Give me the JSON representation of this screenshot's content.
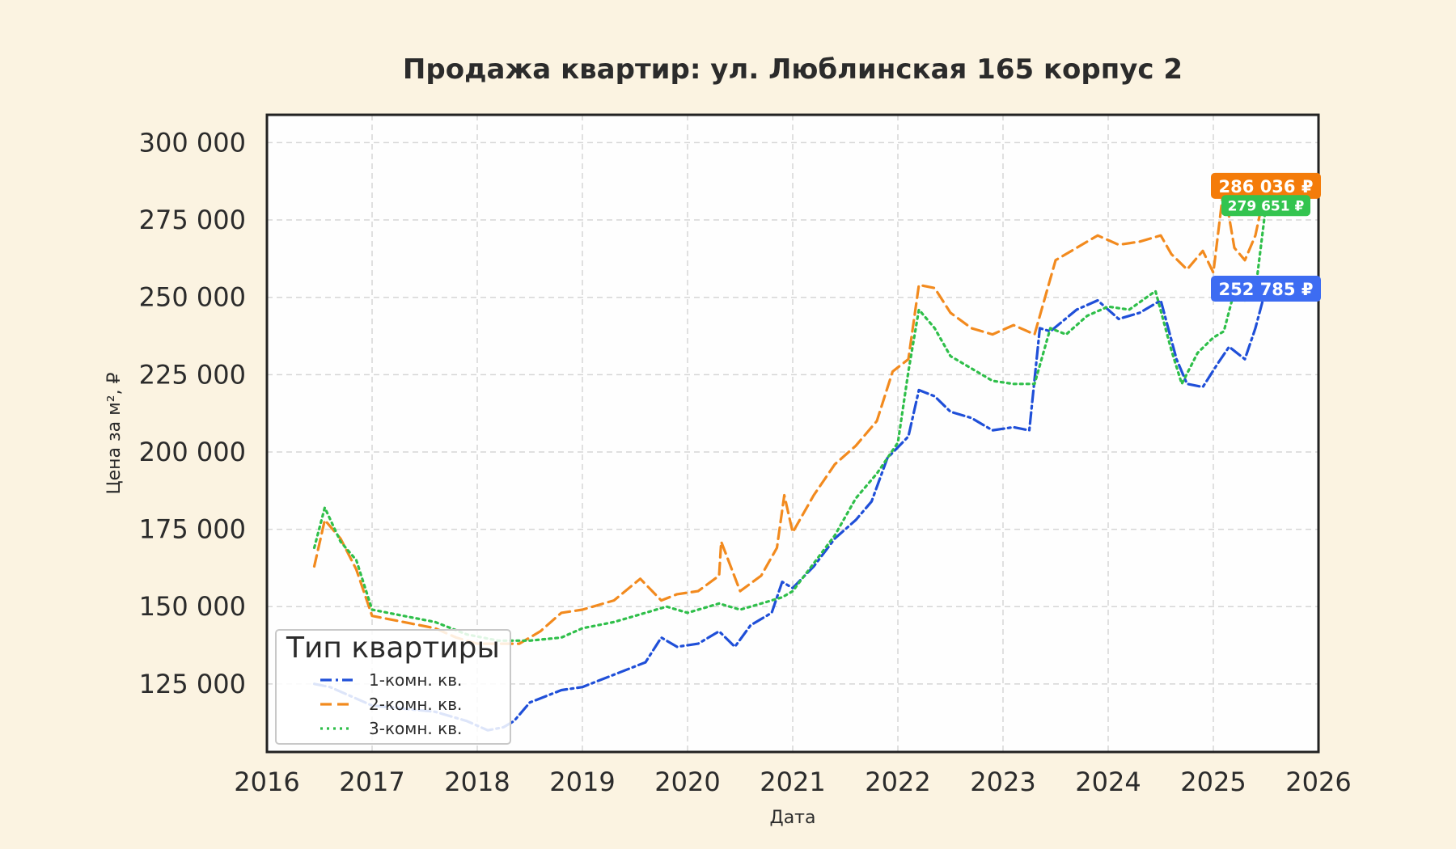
{
  "chart_data": {
    "type": "line",
    "title": "Продажа квартир: ул. Люблинская 165 корпус 2",
    "xlabel": "Дата",
    "ylabel": "Цена за м², ₽",
    "xlim": [
      2016.0,
      2026.0
    ],
    "ylim": [
      103000,
      309000
    ],
    "x_ticks": [
      2016,
      2017,
      2018,
      2019,
      2020,
      2021,
      2022,
      2023,
      2024,
      2025,
      2026
    ],
    "x_tick_labels": [
      "2016",
      "2017",
      "2018",
      "2019",
      "2020",
      "2021",
      "2022",
      "2023",
      "2024",
      "2025",
      "2026"
    ],
    "y_ticks": [
      125000,
      150000,
      175000,
      200000,
      225000,
      250000,
      275000,
      300000
    ],
    "y_tick_labels": [
      "125 000",
      "150 000",
      "175 000",
      "200 000",
      "225 000",
      "250 000",
      "275 000",
      "300 000"
    ],
    "grid": true,
    "legend": {
      "title": "Тип квартиры",
      "placement": "lower-left"
    },
    "series": [
      {
        "name": "1-комн. кв.",
        "color": "#1f4fd8",
        "line_style": "dashdot",
        "x": [
          2016.45,
          2016.6,
          2016.8,
          2017.0,
          2017.3,
          2017.6,
          2017.9,
          2018.1,
          2018.25,
          2018.35,
          2018.5,
          2018.8,
          2019.0,
          2019.3,
          2019.6,
          2019.75,
          2019.9,
          2020.1,
          2020.3,
          2020.45,
          2020.6,
          2020.8,
          2020.9,
          2021.0,
          2021.2,
          2021.4,
          2021.6,
          2021.75,
          2021.9,
          2022.1,
          2022.2,
          2022.35,
          2022.5,
          2022.7,
          2022.9,
          2023.1,
          2023.25,
          2023.35,
          2023.45,
          2023.7,
          2023.9,
          2024.1,
          2024.3,
          2024.5,
          2024.65,
          2024.75,
          2024.9,
          2025.05,
          2025.15,
          2025.3,
          2025.4,
          2025.5
        ],
        "y": [
          125000,
          124000,
          121000,
          118000,
          117000,
          116000,
          113000,
          110000,
          111000,
          113000,
          119000,
          123000,
          124000,
          128000,
          132000,
          140000,
          137000,
          138000,
          142000,
          137000,
          144000,
          148000,
          158000,
          156000,
          163000,
          172000,
          178000,
          184000,
          198000,
          205000,
          220000,
          218000,
          213000,
          211000,
          207000,
          208000,
          207000,
          240000,
          239000,
          246000,
          249000,
          243000,
          245000,
          249000,
          230000,
          222000,
          221000,
          229000,
          234000,
          230000,
          240000,
          252785
        ]
      },
      {
        "name": "2-комн. кв.",
        "color": "#f28a1e",
        "line_style": "dashed",
        "x": [
          2016.45,
          2016.55,
          2016.7,
          2016.85,
          2017.0,
          2017.3,
          2017.6,
          2017.8,
          2018.0,
          2018.2,
          2018.4,
          2018.6,
          2018.8,
          2019.0,
          2019.3,
          2019.55,
          2019.75,
          2019.9,
          2020.1,
          2020.3,
          2020.32,
          2020.5,
          2020.7,
          2020.85,
          2020.92,
          2021.0,
          2021.2,
          2021.4,
          2021.6,
          2021.7,
          2021.8,
          2021.95,
          2022.1,
          2022.2,
          2022.35,
          2022.5,
          2022.7,
          2022.9,
          2023.1,
          2023.3,
          2023.5,
          2023.7,
          2023.9,
          2024.1,
          2024.3,
          2024.5,
          2024.6,
          2024.75,
          2024.9,
          2025.0,
          2025.1,
          2025.2,
          2025.3,
          2025.4,
          2025.5
        ],
        "y": [
          163000,
          178000,
          172000,
          162000,
          147000,
          145000,
          143000,
          140000,
          138000,
          138000,
          138000,
          142000,
          148000,
          149000,
          152000,
          159000,
          152000,
          154000,
          155000,
          160000,
          171000,
          155000,
          160000,
          169000,
          186000,
          174000,
          186000,
          196000,
          202000,
          206000,
          210000,
          226000,
          230000,
          254000,
          253000,
          245000,
          240000,
          238000,
          241000,
          238000,
          262000,
          266000,
          270000,
          267000,
          268000,
          270000,
          264000,
          259000,
          265000,
          258000,
          286000,
          266000,
          262000,
          270000,
          286036
        ]
      },
      {
        "name": "3-комн. кв.",
        "color": "#2fbf4a",
        "line_style": "dotted",
        "x": [
          2016.45,
          2016.55,
          2016.7,
          2016.85,
          2017.0,
          2017.3,
          2017.6,
          2017.9,
          2018.2,
          2018.5,
          2018.8,
          2019.0,
          2019.3,
          2019.6,
          2019.8,
          2020.0,
          2020.3,
          2020.5,
          2020.7,
          2020.9,
          2021.0,
          2021.2,
          2021.4,
          2021.6,
          2021.8,
          2022.0,
          2022.1,
          2022.2,
          2022.35,
          2022.5,
          2022.7,
          2022.9,
          2023.1,
          2023.3,
          2023.45,
          2023.6,
          2023.8,
          2024.0,
          2024.2,
          2024.45,
          2024.6,
          2024.7,
          2024.85,
          2025.0,
          2025.1,
          2025.2,
          2025.3,
          2025.4,
          2025.5
        ],
        "y": [
          169000,
          182000,
          171000,
          165000,
          149000,
          147000,
          145000,
          141000,
          139000,
          139000,
          140000,
          143000,
          145000,
          148000,
          150000,
          148000,
          151000,
          149000,
          151000,
          153000,
          155000,
          164000,
          173000,
          185000,
          193000,
          203000,
          226000,
          246000,
          240000,
          231000,
          227000,
          223000,
          222000,
          222000,
          240000,
          238000,
          244000,
          247000,
          246000,
          252000,
          233000,
          222000,
          232000,
          237000,
          239000,
          252000,
          249000,
          252000,
          279651
        ]
      }
    ],
    "end_labels": [
      {
        "series": "2-комн. кв.",
        "text": "286 036 ₽",
        "value": 286036,
        "color": "#f47c0a"
      },
      {
        "series": "3-комн. кв.",
        "text": "279 651 ₽",
        "value": 279651,
        "color": "#33c44f"
      },
      {
        "series": "1-комн. кв.",
        "text": "252 785 ₽",
        "value": 252785,
        "color": "#3d6cf2"
      }
    ]
  }
}
